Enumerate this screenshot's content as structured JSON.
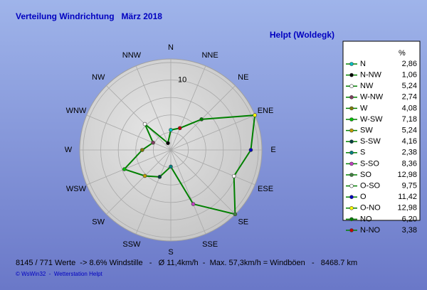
{
  "chart_data": {
    "type": "radar",
    "title": "Verteilung Windrichtung   März 2018",
    "subtitle": "Helpt (Woldegk)",
    "categories": [
      "N",
      "NNE",
      "NE",
      "ENE",
      "E",
      "ESE",
      "SE",
      "SSE",
      "S",
      "SSW",
      "SW",
      "WSW",
      "W",
      "WNW",
      "NW",
      "NNW"
    ],
    "direction": "counterclockwise",
    "line_color": "#008000",
    "rlim": [
      0,
      13
    ],
    "rticks": [
      10
    ],
    "rgrid": [
      2.5,
      5,
      7.5,
      10,
      12.5
    ],
    "legend_header": "%",
    "points": [
      {
        "name": "N",
        "color": "#00c0c0",
        "value": 2.86,
        "value_label": "2,86"
      },
      {
        "name": "N-NW",
        "color": "#000000",
        "value": 1.06,
        "value_label": "1,06"
      },
      {
        "name": "NW",
        "color": "#ffffff",
        "value": 5.24,
        "value_label": "5,24"
      },
      {
        "name": "W-NW",
        "color": "#804060",
        "value": 2.74,
        "value_label": "2,74"
      },
      {
        "name": "W",
        "color": "#808000",
        "value": 4.08,
        "value_label": "4,08"
      },
      {
        "name": "W-SW",
        "color": "#00c000",
        "value": 7.18,
        "value_label": "7,18"
      },
      {
        "name": "SW",
        "color": "#c0a000",
        "value": 5.24,
        "value_label": "5,24"
      },
      {
        "name": "S-SW",
        "color": "#004040",
        "value": 4.16,
        "value_label": "4,16"
      },
      {
        "name": "S",
        "color": "#008080",
        "value": 2.38,
        "value_label": "2,38"
      },
      {
        "name": "S-SO",
        "color": "#c040c0",
        "value": 8.36,
        "value_label": "8,36"
      },
      {
        "name": "SO",
        "color": "#408040",
        "value": 12.98,
        "value_label": "12,98"
      },
      {
        "name": "O-SO",
        "color": "#ffffff",
        "value": 9.75,
        "value_label": "9,75"
      },
      {
        "name": "O",
        "color": "#0000c0",
        "value": 11.42,
        "value_label": "11,42"
      },
      {
        "name": "O-NO",
        "color": "#ffff00",
        "value": 12.98,
        "value_label": "12,98"
      },
      {
        "name": "NO",
        "color": "#008000",
        "value": 6.2,
        "value_label": "6,20"
      },
      {
        "name": "N-NO",
        "color": "#c00000",
        "value": 3.38,
        "value_label": "3,38"
      }
    ],
    "footer": "8145 / 771 Werte  -> 8.6% Windstille   -   Ø 11,4km/h  -  Max. 57,3km/h = Windböen   -   8468.7 km",
    "credit": "© WsWin32  -  Wetterstation Helpt"
  }
}
